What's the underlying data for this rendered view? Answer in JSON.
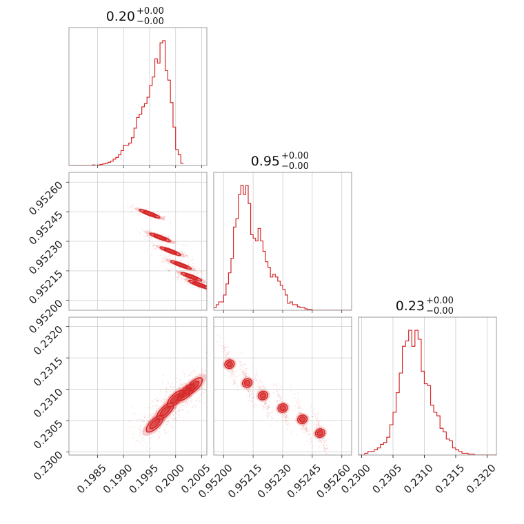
{
  "chart_data": {
    "type": "corner",
    "color": "#d62728",
    "params": [
      {
        "title": "0.20",
        "title_sup": "+0.00",
        "title_sub": "−0.00",
        "range": [
          0.19795,
          0.2006
        ],
        "ticks": [
          0.1985,
          0.199,
          0.1995,
          0.2,
          0.2005
        ],
        "tick_labels": [
          "0.1985",
          "0.1990",
          "0.1995",
          "0.2000",
          "0.2005"
        ]
      },
      {
        "title": "0.95",
        "title_sup": "+0.00",
        "title_sub": "−0.00",
        "range": [
          0.95195,
          0.95265
        ],
        "ticks": [
          0.952,
          0.95215,
          0.9523,
          0.95245,
          0.9526
        ],
        "tick_labels": [
          "0.95200",
          "0.95215",
          "0.95230",
          "0.95245",
          "0.95260"
        ]
      },
      {
        "title": "0.23",
        "title_sup": "+0.00",
        "title_sub": "−0.00",
        "range": [
          0.22995,
          0.23215
        ],
        "ticks": [
          0.23,
          0.2305,
          0.231,
          0.2315,
          0.232
        ],
        "tick_labels": [
          "0.2300",
          "0.2305",
          "0.2310",
          "0.2315",
          "0.2320"
        ]
      }
    ],
    "marginals": [
      {
        "param": 0,
        "edges_from": 0.19795,
        "bin_width": 5e-05,
        "counts": [
          0,
          0,
          0,
          0,
          0,
          0,
          0,
          0,
          0,
          1,
          0,
          1,
          2,
          3,
          4,
          6,
          8,
          12,
          15,
          20,
          28,
          38,
          38,
          42,
          52,
          70,
          90,
          96,
          110,
          116,
          128,
          150,
          166,
          200,
          192,
          230,
          234,
          178,
          160,
          118,
          72,
          30,
          20,
          4
        ]
      },
      {
        "param": 1,
        "edges_from": 0.95195,
        "bin_width": 1.25e-05,
        "counts": [
          4,
          8,
          12,
          12,
          22,
          38,
          54,
          75,
          120,
          132,
          167,
          180,
          167,
          180,
          154,
          109,
          104,
          100,
          118,
          100,
          85,
          70,
          62,
          48,
          52,
          48,
          42,
          36,
          30,
          22,
          10,
          12,
          8,
          8,
          5,
          4,
          4,
          2,
          1,
          1,
          0,
          0,
          0,
          0,
          0,
          0,
          0,
          0,
          0,
          0,
          0,
          0,
          0,
          0,
          0,
          0
        ]
      },
      {
        "param": 2,
        "edges_from": 0.22995,
        "bin_width": 5e-05,
        "counts": [
          0,
          0,
          2,
          4,
          4,
          6,
          8,
          12,
          14,
          20,
          34,
          48,
          70,
          92,
          122,
          128,
          140,
          122,
          140,
          130,
          94,
          80,
          78,
          56,
          48,
          44,
          30,
          26,
          18,
          16,
          8,
          6,
          4,
          2,
          2,
          1,
          1,
          0,
          0,
          0,
          0,
          0,
          0,
          0
        ]
      }
    ],
    "pairs": [
      {
        "x": 0,
        "y": 1,
        "anchors": [
          [
            0.1995,
            0.95244
          ],
          [
            0.1997,
            0.95232
          ],
          [
            0.1999,
            0.95225
          ],
          [
            0.2001,
            0.95218
          ],
          [
            0.2003,
            0.95212
          ],
          [
            0.20045,
            0.95208
          ]
        ],
        "sigma": [
          0.00035,
          3.5e-05
        ],
        "rho": -0.85
      },
      {
        "x": 0,
        "y": 2,
        "anchors": [
          [
            0.1996,
            0.23045
          ],
          [
            0.1998,
            0.23065
          ],
          [
            0.2,
            0.23085
          ],
          [
            0.2002,
            0.23095
          ],
          [
            0.20035,
            0.23105
          ]
        ],
        "sigma": [
          0.00035,
          0.00028
        ],
        "rho": 0.45
      },
      {
        "x": 1,
        "y": 2,
        "anchors": [
          [
            0.95203,
            0.2314
          ],
          [
            0.95212,
            0.2311
          ],
          [
            0.9522,
            0.2309
          ],
          [
            0.9523,
            0.2307
          ],
          [
            0.9524,
            0.23052
          ],
          [
            0.95249,
            0.2303
          ]
        ],
        "sigma": [
          3.5e-05,
          0.0003
        ],
        "rho": -0.85
      }
    ]
  }
}
